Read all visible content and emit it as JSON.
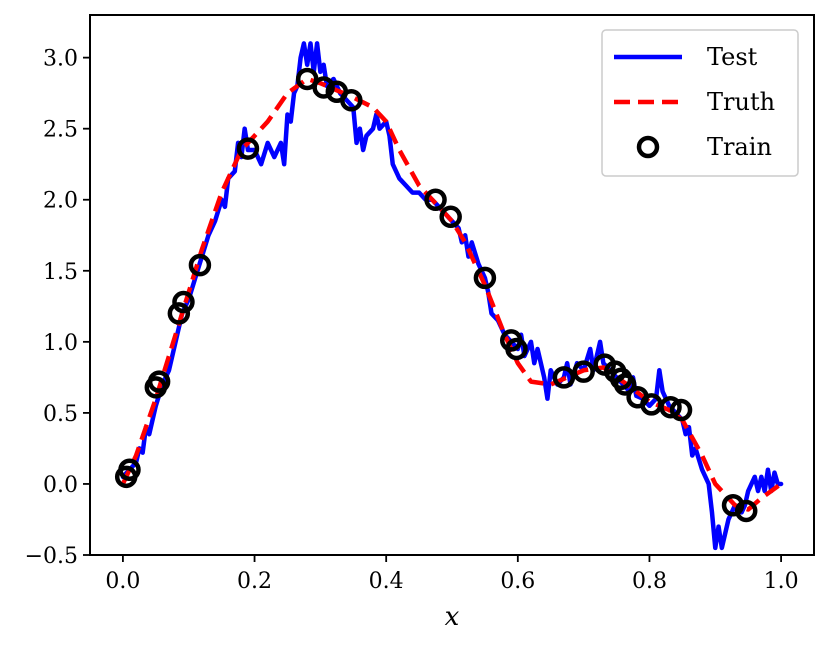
{
  "chart_data": {
    "type": "line",
    "xlabel": "x",
    "ylabel": "",
    "xlim": [
      -0.05,
      1.05
    ],
    "ylim": [
      -0.5,
      3.3
    ],
    "x_ticks": [
      0.0,
      0.2,
      0.4,
      0.6,
      0.8,
      1.0
    ],
    "x_tick_labels": [
      "0.0",
      "0.2",
      "0.4",
      "0.6",
      "0.8",
      "1.0"
    ],
    "y_ticks": [
      -0.5,
      0.0,
      0.5,
      1.0,
      1.5,
      2.0,
      2.5,
      3.0
    ],
    "y_tick_labels": [
      "−0.5",
      "0.0",
      "0.5",
      "1.0",
      "1.5",
      "2.0",
      "2.5",
      "3.0"
    ],
    "grid": false,
    "legend_position": "top-right",
    "series": [
      {
        "name": "Test",
        "kind": "line",
        "color": "#0000ff",
        "points": [
          [
            0.0,
            0.05
          ],
          [
            0.01,
            0.1
          ],
          [
            0.02,
            0.15
          ],
          [
            0.025,
            0.25
          ],
          [
            0.03,
            0.22
          ],
          [
            0.035,
            0.4
          ],
          [
            0.04,
            0.35
          ],
          [
            0.05,
            0.55
          ],
          [
            0.06,
            0.7
          ],
          [
            0.07,
            0.8
          ],
          [
            0.08,
            1.0
          ],
          [
            0.09,
            1.2
          ],
          [
            0.1,
            1.3
          ],
          [
            0.11,
            1.45
          ],
          [
            0.12,
            1.6
          ],
          [
            0.13,
            1.75
          ],
          [
            0.14,
            1.85
          ],
          [
            0.15,
            2.0
          ],
          [
            0.155,
            1.95
          ],
          [
            0.16,
            2.15
          ],
          [
            0.17,
            2.2
          ],
          [
            0.175,
            2.4
          ],
          [
            0.18,
            2.3
          ],
          [
            0.185,
            2.5
          ],
          [
            0.19,
            2.35
          ],
          [
            0.2,
            2.35
          ],
          [
            0.21,
            2.25
          ],
          [
            0.22,
            2.4
          ],
          [
            0.23,
            2.3
          ],
          [
            0.24,
            2.4
          ],
          [
            0.245,
            2.25
          ],
          [
            0.25,
            2.6
          ],
          [
            0.255,
            2.55
          ],
          [
            0.26,
            2.75
          ],
          [
            0.265,
            2.8
          ],
          [
            0.27,
            3.0
          ],
          [
            0.275,
            3.1
          ],
          [
            0.28,
            2.95
          ],
          [
            0.285,
            3.1
          ],
          [
            0.29,
            2.9
          ],
          [
            0.295,
            3.1
          ],
          [
            0.3,
            2.9
          ],
          [
            0.305,
            2.95
          ],
          [
            0.31,
            2.8
          ],
          [
            0.32,
            2.85
          ],
          [
            0.33,
            2.75
          ],
          [
            0.34,
            2.7
          ],
          [
            0.35,
            2.65
          ],
          [
            0.355,
            2.4
          ],
          [
            0.36,
            2.5
          ],
          [
            0.365,
            2.35
          ],
          [
            0.37,
            2.45
          ],
          [
            0.38,
            2.5
          ],
          [
            0.385,
            2.6
          ],
          [
            0.39,
            2.5
          ],
          [
            0.4,
            2.55
          ],
          [
            0.405,
            2.45
          ],
          [
            0.41,
            2.25
          ],
          [
            0.42,
            2.15
          ],
          [
            0.43,
            2.1
          ],
          [
            0.44,
            2.05
          ],
          [
            0.45,
            2.05
          ],
          [
            0.46,
            2.0
          ],
          [
            0.47,
            2.0
          ],
          [
            0.48,
            1.95
          ],
          [
            0.49,
            1.9
          ],
          [
            0.5,
            1.85
          ],
          [
            0.51,
            1.8
          ],
          [
            0.515,
            1.7
          ],
          [
            0.52,
            1.75
          ],
          [
            0.525,
            1.6
          ],
          [
            0.53,
            1.7
          ],
          [
            0.54,
            1.55
          ],
          [
            0.55,
            1.45
          ],
          [
            0.555,
            1.35
          ],
          [
            0.56,
            1.2
          ],
          [
            0.57,
            1.15
          ],
          [
            0.58,
            1.05
          ],
          [
            0.59,
            1.0
          ],
          [
            0.6,
            0.95
          ],
          [
            0.605,
            1.05
          ],
          [
            0.61,
            0.9
          ],
          [
            0.62,
            1.0
          ],
          [
            0.625,
            0.85
          ],
          [
            0.63,
            0.95
          ],
          [
            0.635,
            0.85
          ],
          [
            0.64,
            0.75
          ],
          [
            0.645,
            0.6
          ],
          [
            0.65,
            0.8
          ],
          [
            0.66,
            0.7
          ],
          [
            0.67,
            0.75
          ],
          [
            0.675,
            0.85
          ],
          [
            0.68,
            0.7
          ],
          [
            0.69,
            0.85
          ],
          [
            0.7,
            0.8
          ],
          [
            0.71,
            0.95
          ],
          [
            0.715,
            0.8
          ],
          [
            0.72,
            0.9
          ],
          [
            0.725,
            1.0
          ],
          [
            0.73,
            0.85
          ],
          [
            0.74,
            0.8
          ],
          [
            0.75,
            0.75
          ],
          [
            0.76,
            0.7
          ],
          [
            0.77,
            0.65
          ],
          [
            0.775,
            0.75
          ],
          [
            0.78,
            0.62
          ],
          [
            0.79,
            0.6
          ],
          [
            0.8,
            0.55
          ],
          [
            0.81,
            0.6
          ],
          [
            0.815,
            0.8
          ],
          [
            0.82,
            0.65
          ],
          [
            0.83,
            0.55
          ],
          [
            0.84,
            0.5
          ],
          [
            0.85,
            0.45
          ],
          [
            0.855,
            0.35
          ],
          [
            0.86,
            0.4
          ],
          [
            0.865,
            0.2
          ],
          [
            0.87,
            0.25
          ],
          [
            0.88,
            0.1
          ],
          [
            0.89,
            0.0
          ],
          [
            0.895,
            -0.2
          ],
          [
            0.9,
            -0.45
          ],
          [
            0.905,
            -0.3
          ],
          [
            0.91,
            -0.45
          ],
          [
            0.92,
            -0.25
          ],
          [
            0.93,
            -0.15
          ],
          [
            0.94,
            -0.2
          ],
          [
            0.945,
            -0.15
          ],
          [
            0.95,
            -0.05
          ],
          [
            0.96,
            0.05
          ],
          [
            0.965,
            -0.05
          ],
          [
            0.97,
            0.05
          ],
          [
            0.975,
            -0.05
          ],
          [
            0.98,
            0.1
          ],
          [
            0.985,
            -0.05
          ],
          [
            0.99,
            0.08
          ],
          [
            0.995,
            0.0
          ],
          [
            1.0,
            0.0
          ]
        ]
      },
      {
        "name": "Truth",
        "kind": "dashed-line",
        "color": "#ff0000",
        "points": [
          [
            0.0,
            0.0
          ],
          [
            0.02,
            0.2
          ],
          [
            0.05,
            0.6
          ],
          [
            0.08,
            1.05
          ],
          [
            0.1,
            1.35
          ],
          [
            0.12,
            1.65
          ],
          [
            0.15,
            2.05
          ],
          [
            0.18,
            2.35
          ],
          [
            0.2,
            2.45
          ],
          [
            0.22,
            2.55
          ],
          [
            0.25,
            2.75
          ],
          [
            0.28,
            2.85
          ],
          [
            0.3,
            2.82
          ],
          [
            0.32,
            2.78
          ],
          [
            0.35,
            2.72
          ],
          [
            0.38,
            2.65
          ],
          [
            0.4,
            2.55
          ],
          [
            0.42,
            2.35
          ],
          [
            0.45,
            2.1
          ],
          [
            0.48,
            1.95
          ],
          [
            0.5,
            1.85
          ],
          [
            0.52,
            1.7
          ],
          [
            0.55,
            1.4
          ],
          [
            0.58,
            1.05
          ],
          [
            0.6,
            0.85
          ],
          [
            0.62,
            0.72
          ],
          [
            0.65,
            0.7
          ],
          [
            0.68,
            0.76
          ],
          [
            0.7,
            0.8
          ],
          [
            0.73,
            0.82
          ],
          [
            0.76,
            0.72
          ],
          [
            0.8,
            0.58
          ],
          [
            0.83,
            0.52
          ],
          [
            0.85,
            0.45
          ],
          [
            0.88,
            0.2
          ],
          [
            0.9,
            0.0
          ],
          [
            0.93,
            -0.15
          ],
          [
            0.95,
            -0.18
          ],
          [
            0.97,
            -0.1
          ],
          [
            1.0,
            0.0
          ]
        ]
      },
      {
        "name": "Train",
        "kind": "markers",
        "color": "#000000",
        "points": [
          [
            0.005,
            0.05
          ],
          [
            0.01,
            0.1
          ],
          [
            0.05,
            0.68
          ],
          [
            0.055,
            0.72
          ],
          [
            0.085,
            1.2
          ],
          [
            0.092,
            1.28
          ],
          [
            0.117,
            1.54
          ],
          [
            0.19,
            2.36
          ],
          [
            0.28,
            2.85
          ],
          [
            0.305,
            2.79
          ],
          [
            0.325,
            2.76
          ],
          [
            0.347,
            2.7
          ],
          [
            0.475,
            2.0
          ],
          [
            0.498,
            1.88
          ],
          [
            0.55,
            1.45
          ],
          [
            0.59,
            1.01
          ],
          [
            0.598,
            0.95
          ],
          [
            0.67,
            0.75
          ],
          [
            0.7,
            0.79
          ],
          [
            0.732,
            0.84
          ],
          [
            0.748,
            0.79
          ],
          [
            0.757,
            0.74
          ],
          [
            0.763,
            0.7
          ],
          [
            0.782,
            0.61
          ],
          [
            0.803,
            0.56
          ],
          [
            0.832,
            0.54
          ],
          [
            0.848,
            0.52
          ],
          [
            0.927,
            -0.15
          ],
          [
            0.947,
            -0.19
          ]
        ]
      }
    ]
  }
}
